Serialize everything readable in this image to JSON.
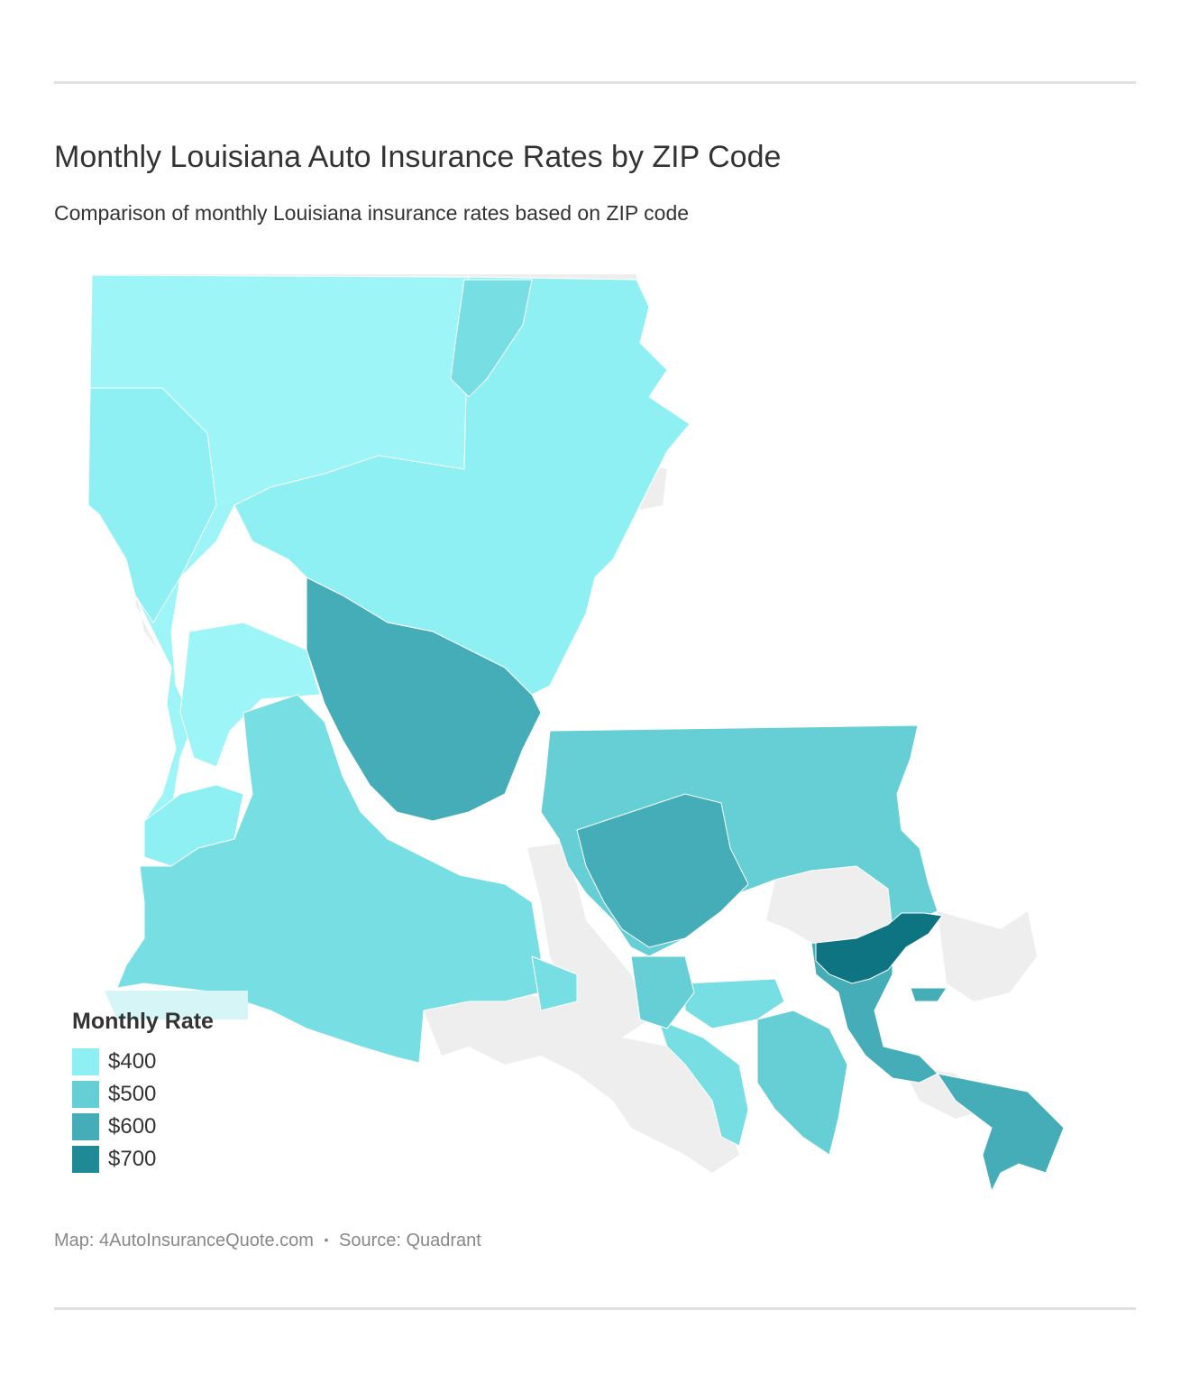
{
  "header": {
    "title": "Monthly Louisiana Auto Insurance Rates by ZIP Code",
    "subtitle": "Comparison of monthly Louisiana insurance rates based on ZIP code"
  },
  "legend": {
    "title": "Monthly Rate",
    "items": [
      {
        "label": "$400",
        "color": "#8ff0f3"
      },
      {
        "label": "$500",
        "color": "#66cfd6"
      },
      {
        "label": "$600",
        "color": "#45adb7"
      },
      {
        "label": "$700",
        "color": "#1f8a96"
      }
    ]
  },
  "map": {
    "region": "Louisiana",
    "fill_colors": {
      "lowest": "#9ef5f7",
      "low": "#8ff0f3",
      "mid": "#77dfe4",
      "midhigh": "#66cfd6",
      "high": "#45adb7",
      "highest": "#0f7482",
      "water": "#eeeeee"
    }
  },
  "footer": {
    "map_credit": "Map: 4AutoInsuranceQuote.com",
    "separator": "•",
    "source": "Source: Quadrant"
  }
}
